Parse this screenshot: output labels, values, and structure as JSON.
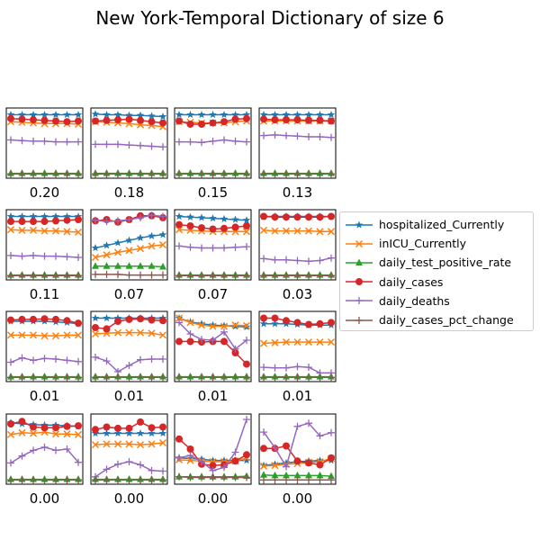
{
  "chart_data": {
    "type": "line",
    "title": "New York-Temporal Dictionary of size 6",
    "series_names": [
      "hospitalized_Currently",
      "inICU_Currently",
      "daily_test_positive_rate",
      "daily_cases",
      "daily_deaths",
      "daily_cases_pct_change"
    ],
    "series_colors": [
      "#1f77b4",
      "#ff7f0e",
      "#2ca02c",
      "#d62728",
      "#9467bd",
      "#8c564b"
    ],
    "markers": [
      "star",
      "x",
      "triangle",
      "circle",
      "plus",
      "plus"
    ],
    "ylim": [
      0,
      1
    ],
    "grid": false,
    "legend_position": "right",
    "panels": [
      {
        "label": "0.20",
        "series": [
          [
            0.95,
            0.95,
            0.95,
            0.95,
            0.95,
            0.95,
            0.95
          ],
          [
            0.84,
            0.83,
            0.82,
            0.81,
            0.81,
            0.81,
            0.8
          ],
          [
            0.02,
            0.02,
            0.02,
            0.02,
            0.02,
            0.02,
            0.02
          ],
          [
            0.89,
            0.88,
            0.87,
            0.86,
            0.85,
            0.84,
            0.85
          ],
          [
            0.55,
            0.54,
            0.53,
            0.53,
            0.52,
            0.52,
            0.52
          ],
          [
            0.01,
            0.01,
            0.01,
            0.01,
            0.01,
            0.01,
            0.01
          ]
        ]
      },
      {
        "label": "0.18",
        "series": [
          [
            0.96,
            0.95,
            0.95,
            0.94,
            0.94,
            0.93,
            0.92
          ],
          [
            0.84,
            0.83,
            0.82,
            0.81,
            0.79,
            0.78,
            0.76
          ],
          [
            0.02,
            0.02,
            0.02,
            0.02,
            0.02,
            0.02,
            0.02
          ],
          [
            0.85,
            0.86,
            0.87,
            0.88,
            0.86,
            0.84,
            0.82
          ],
          [
            0.48,
            0.48,
            0.48,
            0.47,
            0.46,
            0.45,
            0.44
          ],
          [
            0.01,
            0.01,
            0.01,
            0.01,
            0.01,
            0.01,
            0.01
          ]
        ]
      },
      {
        "label": "0.15",
        "series": [
          [
            0.95,
            0.95,
            0.95,
            0.95,
            0.95,
            0.95,
            0.95
          ],
          [
            0.84,
            0.83,
            0.82,
            0.82,
            0.82,
            0.84,
            0.85
          ],
          [
            0.02,
            0.02,
            0.02,
            0.02,
            0.02,
            0.02,
            0.02
          ],
          [
            0.85,
            0.8,
            0.8,
            0.82,
            0.84,
            0.88,
            0.89
          ],
          [
            0.52,
            0.52,
            0.51,
            0.53,
            0.55,
            0.53,
            0.52
          ],
          [
            0.01,
            0.01,
            0.01,
            0.01,
            0.01,
            0.01,
            0.01
          ]
        ]
      },
      {
        "label": "0.13",
        "series": [
          [
            0.95,
            0.95,
            0.95,
            0.95,
            0.95,
            0.95,
            0.95
          ],
          [
            0.85,
            0.85,
            0.85,
            0.85,
            0.85,
            0.85,
            0.85
          ],
          [
            0.02,
            0.02,
            0.02,
            0.02,
            0.02,
            0.02,
            0.02
          ],
          [
            0.88,
            0.87,
            0.87,
            0.87,
            0.86,
            0.86,
            0.85
          ],
          [
            0.62,
            0.63,
            0.62,
            0.61,
            0.6,
            0.6,
            0.59
          ],
          [
            0.01,
            0.01,
            0.01,
            0.01,
            0.01,
            0.01,
            0.01
          ]
        ]
      },
      {
        "label": "0.11",
        "series": [
          [
            0.95,
            0.95,
            0.95,
            0.95,
            0.95,
            0.95,
            0.95
          ],
          [
            0.74,
            0.73,
            0.73,
            0.72,
            0.72,
            0.71,
            0.7
          ],
          [
            0.02,
            0.02,
            0.02,
            0.02,
            0.02,
            0.02,
            0.02
          ],
          [
            0.87,
            0.87,
            0.87,
            0.87,
            0.88,
            0.89,
            0.9
          ],
          [
            0.33,
            0.32,
            0.33,
            0.32,
            0.32,
            0.31,
            0.3
          ],
          [
            0.01,
            0.01,
            0.01,
            0.01,
            0.01,
            0.01,
            0.01
          ]
        ]
      },
      {
        "label": "0.07",
        "series": [
          [
            0.45,
            0.49,
            0.53,
            0.57,
            0.61,
            0.64,
            0.66
          ],
          [
            0.3,
            0.34,
            0.38,
            0.41,
            0.44,
            0.48,
            0.5
          ],
          [
            0.16,
            0.16,
            0.16,
            0.16,
            0.16,
            0.16,
            0.15
          ],
          [
            0.88,
            0.9,
            0.86,
            0.9,
            0.96,
            0.96,
            0.93
          ],
          [
            0.89,
            0.87,
            0.88,
            0.9,
            0.93,
            0.97,
            0.95
          ],
          [
            0.03,
            0.03,
            0.03,
            0.02,
            0.02,
            0.02,
            0.02
          ]
        ]
      },
      {
        "label": "0.07",
        "series": [
          [
            0.95,
            0.94,
            0.93,
            0.92,
            0.91,
            0.9,
            0.89
          ],
          [
            0.74,
            0.73,
            0.72,
            0.71,
            0.71,
            0.71,
            0.71
          ],
          [
            0.02,
            0.02,
            0.02,
            0.02,
            0.02,
            0.02,
            0.02
          ],
          [
            0.82,
            0.8,
            0.77,
            0.75,
            0.76,
            0.78,
            0.8
          ],
          [
            0.48,
            0.46,
            0.45,
            0.45,
            0.45,
            0.46,
            0.47
          ],
          [
            0.01,
            0.01,
            0.01,
            0.01,
            0.01,
            0.01,
            0.01
          ]
        ]
      },
      {
        "label": "0.03",
        "series": [
          [
            0.95,
            0.95,
            0.95,
            0.95,
            0.95,
            0.95,
            0.95
          ],
          [
            0.73,
            0.72,
            0.72,
            0.72,
            0.72,
            0.71,
            0.71
          ],
          [
            0.02,
            0.02,
            0.02,
            0.02,
            0.02,
            0.02,
            0.02
          ],
          [
            0.95,
            0.94,
            0.94,
            0.94,
            0.94,
            0.94,
            0.95
          ],
          [
            0.28,
            0.26,
            0.26,
            0.25,
            0.24,
            0.25,
            0.29
          ],
          [
            0.01,
            0.01,
            0.01,
            0.01,
            0.01,
            0.01,
            0.01
          ]
        ]
      },
      {
        "label": "0.01",
        "series": [
          [
            0.9,
            0.9,
            0.9,
            0.9,
            0.89,
            0.88,
            0.86
          ],
          [
            0.68,
            0.68,
            0.68,
            0.67,
            0.67,
            0.68,
            0.68
          ],
          [
            0.02,
            0.02,
            0.02,
            0.02,
            0.02,
            0.02,
            0.02
          ],
          [
            0.92,
            0.93,
            0.93,
            0.94,
            0.93,
            0.91,
            0.87
          ],
          [
            0.25,
            0.32,
            0.28,
            0.31,
            0.3,
            0.28,
            0.26
          ],
          [
            0.01,
            0.01,
            0.01,
            0.01,
            0.01,
            0.01,
            0.01
          ]
        ]
      },
      {
        "label": "0.01",
        "series": [
          [
            0.95,
            0.95,
            0.95,
            0.95,
            0.95,
            0.95,
            0.95
          ],
          [
            0.7,
            0.71,
            0.72,
            0.72,
            0.72,
            0.71,
            0.68
          ],
          [
            0.02,
            0.02,
            0.02,
            0.02,
            0.02,
            0.02,
            0.02
          ],
          [
            0.8,
            0.78,
            0.9,
            0.93,
            0.94,
            0.92,
            0.91
          ],
          [
            0.33,
            0.27,
            0.1,
            0.2,
            0.29,
            0.3,
            0.3
          ],
          [
            0.01,
            0.01,
            0.01,
            0.01,
            0.01,
            0.01,
            0.01
          ]
        ]
      },
      {
        "label": "0.01",
        "series": [
          [
            0.95,
            0.89,
            0.86,
            0.84,
            0.83,
            0.82,
            0.81
          ],
          [
            0.95,
            0.88,
            0.84,
            0.82,
            0.82,
            0.84,
            0.83
          ],
          [
            0.02,
            0.02,
            0.02,
            0.02,
            0.02,
            0.02,
            0.02
          ],
          [
            0.58,
            0.58,
            0.57,
            0.58,
            0.58,
            0.4,
            0.22
          ],
          [
            0.88,
            0.7,
            0.61,
            0.6,
            0.73,
            0.46,
            0.6
          ],
          [
            0.01,
            0.01,
            0.01,
            0.01,
            0.01,
            0.01,
            0.01
          ]
        ]
      },
      {
        "label": "0.01",
        "series": [
          [
            0.86,
            0.86,
            0.86,
            0.85,
            0.84,
            0.84,
            0.84
          ],
          [
            0.55,
            0.56,
            0.57,
            0.57,
            0.57,
            0.57,
            0.57
          ],
          [
            0.02,
            0.02,
            0.02,
            0.02,
            0.02,
            0.02,
            0.02
          ],
          [
            0.95,
            0.95,
            0.91,
            0.88,
            0.85,
            0.86,
            0.88
          ],
          [
            0.17,
            0.16,
            0.16,
            0.18,
            0.17,
            0.08,
            0.08
          ],
          [
            0.01,
            0.01,
            0.01,
            0.01,
            0.01,
            0.01,
            0.01
          ]
        ]
      },
      {
        "label": "0.00",
        "series": [
          [
            0.92,
            0.9,
            0.89,
            0.88,
            0.88,
            0.87,
            0.86
          ],
          [
            0.73,
            0.76,
            0.75,
            0.77,
            0.74,
            0.74,
            0.73
          ],
          [
            0.02,
            0.02,
            0.02,
            0.02,
            0.02,
            0.02,
            0.02
          ],
          [
            0.9,
            0.94,
            0.85,
            0.84,
            0.84,
            0.86,
            0.87
          ],
          [
            0.28,
            0.39,
            0.48,
            0.53,
            0.48,
            0.5,
            0.29
          ],
          [
            0.01,
            0.01,
            0.01,
            0.01,
            0.01,
            0.01,
            0.01
          ]
        ]
      },
      {
        "label": "0.00",
        "series": [
          [
            0.75,
            0.75,
            0.75,
            0.75,
            0.75,
            0.75,
            0.75
          ],
          [
            0.57,
            0.58,
            0.58,
            0.58,
            0.57,
            0.58,
            0.6
          ],
          [
            0.02,
            0.02,
            0.02,
            0.02,
            0.02,
            0.02,
            0.02
          ],
          [
            0.81,
            0.85,
            0.83,
            0.83,
            0.93,
            0.84,
            0.85
          ],
          [
            0.06,
            0.18,
            0.26,
            0.3,
            0.25,
            0.16,
            0.15
          ],
          [
            0.01,
            0.01,
            0.01,
            0.01,
            0.01,
            0.01,
            0.01
          ]
        ]
      },
      {
        "label": "0.00",
        "series": [
          [
            0.36,
            0.35,
            0.34,
            0.32,
            0.32,
            0.32,
            0.32
          ],
          [
            0.33,
            0.32,
            0.31,
            0.3,
            0.3,
            0.31,
            0.36
          ],
          [
            0.06,
            0.06,
            0.06,
            0.06,
            0.06,
            0.06,
            0.07
          ],
          [
            0.66,
            0.5,
            0.26,
            0.24,
            0.25,
            0.31,
            0.41
          ],
          [
            0.36,
            0.4,
            0.3,
            0.16,
            0.21,
            0.45,
            0.97
          ],
          [
            0.06,
            0.05,
            0.05,
            0.05,
            0.05,
            0.05,
            0.05
          ]
        ]
      },
      {
        "label": "0.00",
        "series": [
          [
            0.24,
            0.26,
            0.28,
            0.3,
            0.31,
            0.32,
            0.32
          ],
          [
            0.23,
            0.24,
            0.26,
            0.27,
            0.29,
            0.3,
            0.35
          ],
          [
            0.09,
            0.08,
            0.08,
            0.08,
            0.08,
            0.08,
            0.07
          ],
          [
            0.51,
            0.51,
            0.55,
            0.31,
            0.28,
            0.25,
            0.36
          ],
          [
            0.77,
            0.52,
            0.22,
            0.86,
            0.91,
            0.71,
            0.76
          ],
          [
            0.01,
            0.01,
            0.01,
            0.01,
            0.01,
            0.01,
            0.01
          ]
        ]
      }
    ]
  }
}
